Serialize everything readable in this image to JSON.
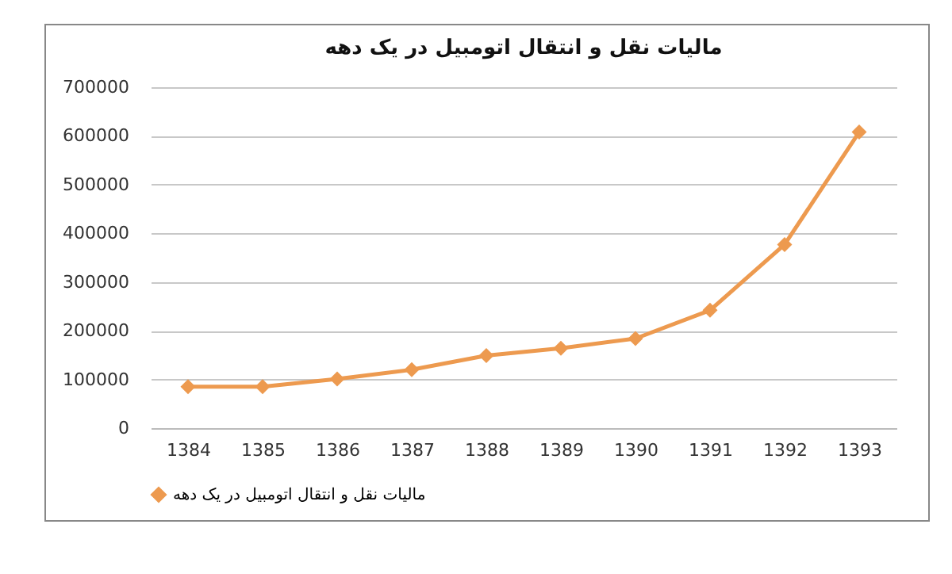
{
  "chart_data": {
    "type": "line",
    "title": "مالیات نقل و انتقال اتومبیل در یک دهه",
    "categories": [
      "1384",
      "1385",
      "1386",
      "1387",
      "1388",
      "1389",
      "1390",
      "1391",
      "1392",
      "1393"
    ],
    "series": [
      {
        "name": "مالیات نقل و انتقال اتومبیل در یک دهه",
        "color": "#ed9a4f",
        "values": [
          85000,
          85000,
          101000,
          120000,
          149000,
          164000,
          184000,
          242000,
          377000,
          608000
        ]
      }
    ],
    "ylim": [
      0,
      700000
    ],
    "yticks": [
      0,
      100000,
      200000,
      300000,
      400000,
      500000,
      600000,
      700000
    ],
    "grid": "y",
    "legend": "bottom",
    "marker": "diamond",
    "line_style": "solid"
  }
}
